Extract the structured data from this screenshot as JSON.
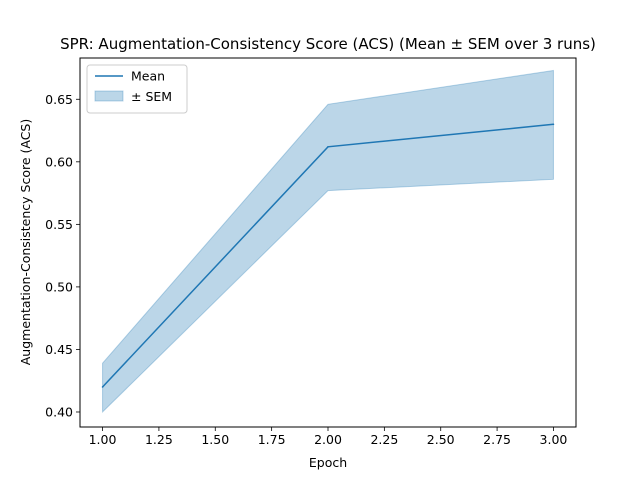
{
  "chart_data": {
    "type": "line",
    "title": "SPR: Augmentation-Consistency Score (ACS) (Mean ± SEM over 3 runs)",
    "xlabel": "Epoch",
    "ylabel": "Augmentation-Consistency Score (ACS)",
    "x": [
      1.0,
      2.0,
      3.0
    ],
    "series": [
      {
        "name": "Mean",
        "values": [
          0.42,
          0.612,
          0.63
        ]
      }
    ],
    "band": {
      "name": "± SEM",
      "lower": [
        0.4,
        0.577,
        0.586
      ],
      "upper": [
        0.439,
        0.646,
        0.673
      ]
    },
    "xlim": [
      0.9,
      3.1
    ],
    "ylim": [
      0.388,
      0.683
    ],
    "x_ticks": [
      "1.00",
      "1.25",
      "1.50",
      "1.75",
      "2.00",
      "2.25",
      "2.50",
      "2.75",
      "3.00"
    ],
    "y_ticks": [
      "0.40",
      "0.45",
      "0.50",
      "0.55",
      "0.60",
      "0.65"
    ],
    "grid": false,
    "legend_position": "top-left",
    "colors": {
      "line": "#1f77b4",
      "band": "#1f77b4"
    }
  }
}
